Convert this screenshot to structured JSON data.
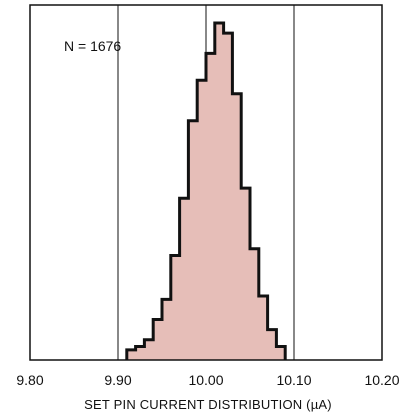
{
  "chart_data": {
    "type": "bar",
    "title": "",
    "annotation": "N = 1676",
    "xlabel": "SET PIN CURRENT DISTRIBUTION (µA)",
    "ylabel": "",
    "xlim": [
      9.8,
      10.2
    ],
    "x_ticks": [
      "9.80",
      "9.90",
      "10.00",
      "10.10",
      "10.20"
    ],
    "grid_x": [
      9.9,
      10.0,
      10.1
    ],
    "ylim": [
      0,
      100
    ],
    "bin_width": 0.01,
    "bins": [
      {
        "x0": 9.91,
        "value": 3
      },
      {
        "x0": 9.92,
        "value": 4
      },
      {
        "x0": 9.93,
        "value": 6
      },
      {
        "x0": 9.94,
        "value": 12
      },
      {
        "x0": 9.95,
        "value": 18
      },
      {
        "x0": 9.96,
        "value": 31
      },
      {
        "x0": 9.97,
        "value": 48
      },
      {
        "x0": 9.98,
        "value": 71
      },
      {
        "x0": 9.99,
        "value": 83
      },
      {
        "x0": 10.0,
        "value": 91
      },
      {
        "x0": 10.01,
        "value": 100
      },
      {
        "x0": 10.02,
        "value": 97
      },
      {
        "x0": 10.03,
        "value": 79
      },
      {
        "x0": 10.04,
        "value": 51
      },
      {
        "x0": 10.05,
        "value": 33
      },
      {
        "x0": 10.06,
        "value": 19
      },
      {
        "x0": 10.07,
        "value": 9
      },
      {
        "x0": 10.08,
        "value": 4
      }
    ],
    "fill_color": "#E6BEB8",
    "stroke_color": "#111111"
  }
}
